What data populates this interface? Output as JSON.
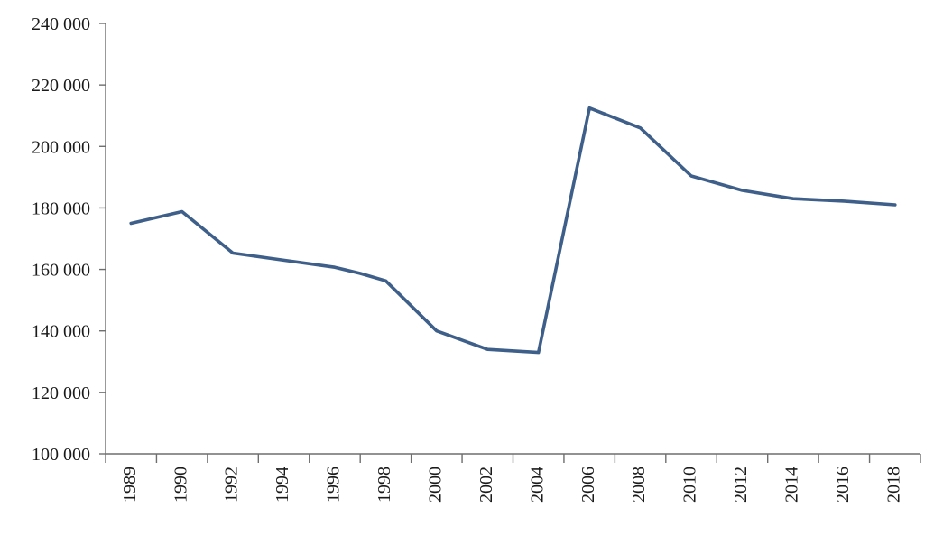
{
  "colors": {
    "series": "#3e5f89",
    "axis": "#6e6e6e",
    "text": "#1a1a1a"
  },
  "chart_data": {
    "type": "line",
    "title": "",
    "xlabel": "",
    "ylabel": "",
    "ylim": [
      100000,
      240000
    ],
    "yticks": [
      100000,
      120000,
      140000,
      160000,
      180000,
      200000,
      220000,
      240000
    ],
    "ytick_labels": [
      "100 000",
      "120 000",
      "140 000",
      "160 000",
      "180 000",
      "200 000",
      "220 000",
      "240 000"
    ],
    "categories": [
      "1989",
      "1990",
      "1992",
      "1994",
      "1996",
      "1998",
      "2000",
      "2002",
      "2004",
      "2006",
      "2008",
      "2010",
      "2012",
      "2014",
      "2016",
      "2018"
    ],
    "series": [
      {
        "name": "",
        "x": [
          "1989",
          "1990",
          "1992",
          "1994",
          "1996",
          "1997",
          "1998",
          "2000",
          "2002",
          "2004",
          "2006",
          "2008",
          "2010",
          "2012",
          "2014",
          "2016",
          "2018"
        ],
        "values": [
          175000,
          178800,
          165300,
          163000,
          160700,
          158700,
          156300,
          140000,
          134000,
          133000,
          212500,
          206000,
          190400,
          185700,
          183000,
          182200,
          181000
        ]
      }
    ],
    "grid": false,
    "legend": "none"
  }
}
